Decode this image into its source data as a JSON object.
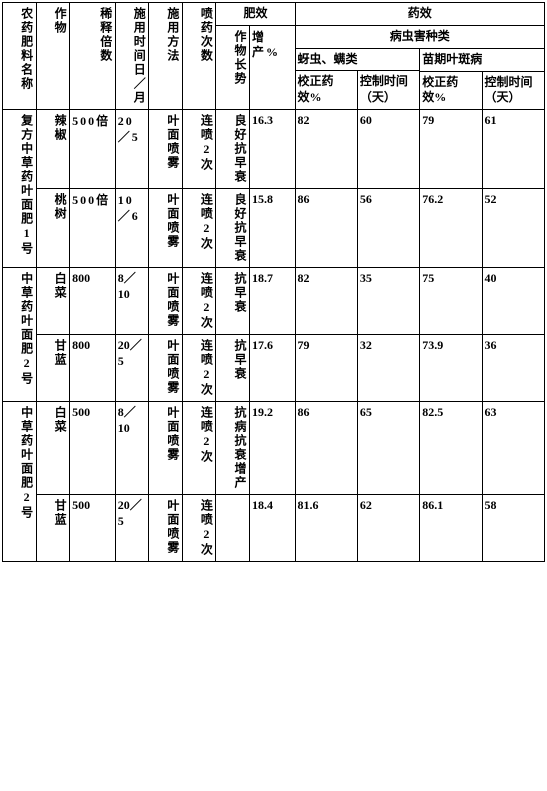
{
  "headers": {
    "col1": "农药肥料名称",
    "col2": "作物",
    "col3": "稀释倍数",
    "col4": "施用时间日／月",
    "col5": "施用方法",
    "col6": "喷药次数",
    "fert_group": "肥效",
    "col7": "作物长势",
    "col8": "增产%",
    "drug_group": "药效",
    "pest_group": "病虫害种类",
    "pestA": "蚜虫、螨类",
    "pestB": "苗期叶斑病",
    "col9": "校正药效%",
    "col10": "控制时间（天）",
    "col11": "校正药效%",
    "col12": "控制时间（天）"
  },
  "rows": [
    {
      "name": "复方中草药叶面肥1号",
      "crop": "辣椒",
      "dilution": "500倍",
      "date": "20／5",
      "method": "叶面喷雾",
      "times": "连喷2次",
      "growth": "良好抗早衰",
      "yield": "16.3",
      "a1": "82",
      "a2": "60",
      "b1": "79",
      "b2": "61"
    },
    {
      "name": "",
      "crop": "桃树",
      "dilution": "500倍",
      "date": "10／6",
      "method": "叶面喷雾",
      "times": "连喷2次",
      "growth": "良好抗早衰",
      "yield": "15.8",
      "a1": "86",
      "a2": "56",
      "b1": "76.2",
      "b2": "52"
    },
    {
      "name": "中草药叶面肥2号",
      "crop": "白菜",
      "dilution": "800",
      "date": "8／10",
      "method": "叶面喷雾",
      "times": "连喷2次",
      "growth": "抗早衰",
      "yield": "18.7",
      "a1": "82",
      "a2": "35",
      "b1": "75",
      "b2": "40"
    },
    {
      "name": "",
      "crop": "甘蓝",
      "dilution": "800",
      "date": "20／5",
      "method": "叶面喷雾",
      "times": "连喷2次",
      "growth": "抗早衰",
      "yield": "17.6",
      "a1": "79",
      "a2": "32",
      "b1": "73.9",
      "b2": "36"
    },
    {
      "name": "中草药叶面肥2号",
      "crop": "白菜",
      "dilution": "500",
      "date": "8／10",
      "method": "叶面喷雾",
      "times": "连喷2次",
      "growth": "抗病抗衰增产",
      "yield": "19.2",
      "a1": "86",
      "a2": "65",
      "b1": "82.5",
      "b2": "63"
    },
    {
      "name": "",
      "crop": "甘蓝",
      "dilution": "500",
      "date": "20／5",
      "method": "叶面喷雾",
      "times": "连喷2次",
      "growth": "",
      "yield": "18.4",
      "a1": "81.6",
      "a2": "62",
      "b1": "86.1",
      "b2": "58"
    }
  ],
  "style": {
    "border_color": "#000000",
    "bg": "#ffffff",
    "font_size_pt": 12
  }
}
